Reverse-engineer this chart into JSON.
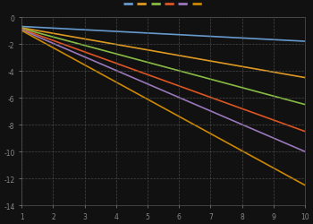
{
  "background_color": "#111111",
  "axes_bg_color": "#111111",
  "grid_color": "#555555",
  "text_color": "#888888",
  "xmin": 1,
  "xmax": 10,
  "ymin": -14,
  "ymax": 0,
  "linewidth": 1.2,
  "series": [
    {
      "color": "#6699cc",
      "a": -0.12,
      "b": -0.05
    },
    {
      "color": "#dd9922",
      "a": -0.38,
      "b": -0.05
    },
    {
      "color": "#88bb44",
      "a": -0.62,
      "b": -0.05
    },
    {
      "color": "#dd5522",
      "a": -0.86,
      "b": -0.05
    },
    {
      "color": "#9977bb",
      "a": -1.1,
      "b": -0.05
    },
    {
      "color": "#cc8800",
      "a": -1.4,
      "b": -0.05
    }
  ],
  "xticks": [
    1,
    2,
    3,
    4,
    5,
    6,
    7,
    8,
    9,
    10
  ],
  "yticks": [
    -14,
    -12,
    -10,
    -8,
    -6,
    -4,
    -2,
    0
  ],
  "tick_fontsize": 5.5
}
